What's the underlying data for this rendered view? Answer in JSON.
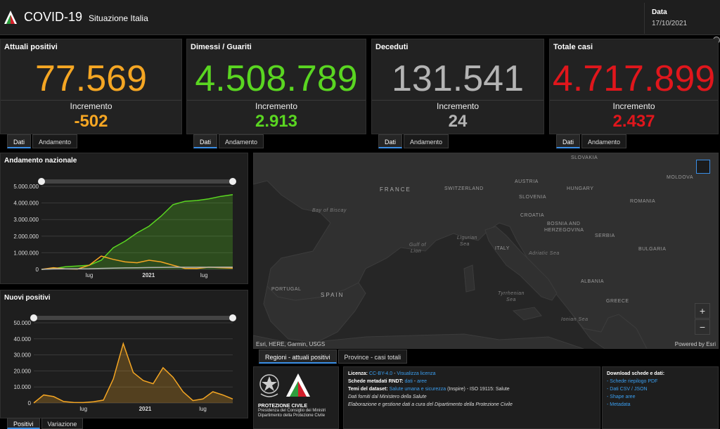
{
  "header": {
    "title": "COVID-19",
    "subtitle": "Situazione Italia",
    "date_label": "Data",
    "date_value": "17/10/2021"
  },
  "cards": [
    {
      "title": "Attuali positivi",
      "value": "77.569",
      "inc_label": "Incremento",
      "inc": "-502",
      "color": "#f5a623"
    },
    {
      "title": "Dimessi / Guariti",
      "value": "4.508.789",
      "inc_label": "Incremento",
      "inc": "2.913",
      "color": "#5ad621"
    },
    {
      "title": "Deceduti",
      "value": "131.541",
      "inc_label": "Incremento",
      "inc": "24",
      "color": "#b4b4b4"
    },
    {
      "title": "Totale casi",
      "value": "4.717.899",
      "inc_label": "Incremento",
      "inc": "2.437",
      "color": "#e0161c"
    }
  ],
  "card_tabs": [
    "Dati",
    "Andamento"
  ],
  "andamento": {
    "title": "Andamento nazionale",
    "y_ticks": [
      "5.000.000",
      "4.000.000",
      "3.000.000",
      "2.000.000",
      "1.000.000",
      "0"
    ],
    "x_ticks": [
      "lug",
      "2021",
      "lug"
    ]
  },
  "nuovi": {
    "title": "Nuovi positivi",
    "y_ticks": [
      "50.000",
      "40.000",
      "30.000",
      "20.000",
      "10.000",
      "0"
    ],
    "x_ticks": [
      "lug",
      "2021",
      "lug"
    ],
    "tabs": [
      "Positivi",
      "Variazione"
    ]
  },
  "chart_data": [
    {
      "type": "area",
      "title": "Andamento nazionale",
      "xlabel": "",
      "ylabel": "",
      "x": [
        "2020-02",
        "2020-04",
        "2020-06",
        "2020-08",
        "2020-10",
        "2020-11",
        "2020-12",
        "2021-01",
        "2021-02",
        "2021-03",
        "2021-04",
        "2021-05",
        "2021-06",
        "2021-07",
        "2021-08",
        "2021-09",
        "2021-10"
      ],
      "series": [
        {
          "values": [
            0,
            40000,
            160000,
            200000,
            250000,
            550000,
            1300000,
            1700000,
            2200000,
            2600000,
            3200000,
            3900000,
            4100000,
            4150000,
            4250000,
            4400000,
            4500000
          ]
        },
        {
          "values": [
            0,
            100000,
            30000,
            15000,
            250000,
            800000,
            600000,
            450000,
            400000,
            550000,
            450000,
            250000,
            60000,
            50000,
            130000,
            100000,
            77000
          ]
        },
        {
          "values": [
            0,
            25000,
            34000,
            35000,
            40000,
            60000,
            75000,
            88000,
            98000,
            110000,
            120000,
            126000,
            127000,
            128000,
            129000,
            130000,
            131500
          ]
        }
      ],
      "ylim": [
        0,
        5000000
      ],
      "grid": true
    },
    {
      "type": "area",
      "title": "Nuovi positivi",
      "xlabel": "",
      "ylabel": "",
      "x": [
        "2020-02",
        "2020-03",
        "2020-04",
        "2020-05",
        "2020-06",
        "2020-07",
        "2020-08",
        "2020-09",
        "2020-10",
        "2020-11",
        "2020-12",
        "2021-01",
        "2021-02",
        "2021-03",
        "2021-04",
        "2021-05",
        "2021-06",
        "2021-07",
        "2021-08",
        "2021-09",
        "2021-10"
      ],
      "series": [
        {
          "values": [
            0,
            5000,
            4000,
            900,
            300,
            250,
            800,
            1800,
            15000,
            37000,
            19000,
            14000,
            12000,
            22000,
            16000,
            7000,
            1500,
            2500,
            7000,
            5000,
            2500
          ]
        }
      ],
      "ylim": [
        0,
        50000
      ],
      "grid": true
    }
  ],
  "map": {
    "labels": [
      {
        "text": "FRANCE",
        "kind": "big"
      },
      {
        "text": "SWITZERLAND",
        "kind": "country"
      },
      {
        "text": "AUSTRIA",
        "kind": "country"
      },
      {
        "text": "SLOVAKIA",
        "kind": "country"
      },
      {
        "text": "HUNGARY",
        "kind": "country"
      },
      {
        "text": "MOLDOVA",
        "kind": "country"
      },
      {
        "text": "SLOVENIA",
        "kind": "country"
      },
      {
        "text": "ROMANIA",
        "kind": "country"
      },
      {
        "text": "CROATIA",
        "kind": "country"
      },
      {
        "text": "BOSNIA AND",
        "kind": "country"
      },
      {
        "text": "HERZEGOVINA",
        "kind": "country"
      },
      {
        "text": "SERBIA",
        "kind": "country"
      },
      {
        "text": "BULGARIA",
        "kind": "country"
      },
      {
        "text": "ITALY",
        "kind": "country"
      },
      {
        "text": "ALBANIA",
        "kind": "country"
      },
      {
        "text": "GREECE",
        "kind": "country"
      },
      {
        "text": "PORTUGAL",
        "kind": "country"
      },
      {
        "text": "SPAIN",
        "kind": "big"
      },
      {
        "text": "Bay of Biscay",
        "kind": "sea"
      },
      {
        "text": "Gulf of",
        "kind": "sea"
      },
      {
        "text": "Lion",
        "kind": "sea"
      },
      {
        "text": "Ligurian",
        "kind": "sea"
      },
      {
        "text": "Sea",
        "kind": "sea"
      },
      {
        "text": "Adriatic Sea",
        "kind": "sea"
      },
      {
        "text": "Tyrrhenian",
        "kind": "sea"
      },
      {
        "text": "Sea",
        "kind": "sea"
      },
      {
        "text": "Ionian Sea",
        "kind": "sea"
      }
    ],
    "attribution": "Esri, HERE, Garmin, USGS",
    "powered": "Powered by Esri",
    "zoom_in": "+",
    "zoom_out": "−",
    "tabs": [
      "Regioni - attuali positivi",
      "Province - casi totali"
    ]
  },
  "info": {
    "pc_title": "PROTEZIONE CIVILE",
    "pc_line1": "Presidenza del Consiglio dei Ministri",
    "pc_line2": "Dipartimento della Protezione Civile",
    "licenza_label": "Licenza:",
    "licenza_link": "CC-BY-4.0",
    "licenza_sep": " - ",
    "licenza_link2": "Visualizza licenza",
    "schede_label": "Schede metadati RNDT:",
    "schede_link1": "dati",
    "schede_sep": " - ",
    "schede_link2": "aree",
    "temi_label": "Temi del dataset:",
    "temi_link": "Salute umana e sicurezza",
    "temi_rest": " (Inspire) - ISO 19115: Salute",
    "fonte": "Dati forniti dal Ministero della Salute",
    "elaborazione": "Elaborazione e gestione dati a cura del Dipartimento della Protezione Civile",
    "dl_title": "Download schede e dati:",
    "dl_items": [
      "- Schede riepilogo PDF",
      "- Dati CSV / JSON",
      "- Shape aree",
      "- Metadata"
    ]
  },
  "colors": {
    "accent": "#3a8ee6",
    "positivi": "#f5a623",
    "guariti": "#5ad621",
    "deceduti": "#b4b4b4",
    "totale": "#e0161c"
  }
}
